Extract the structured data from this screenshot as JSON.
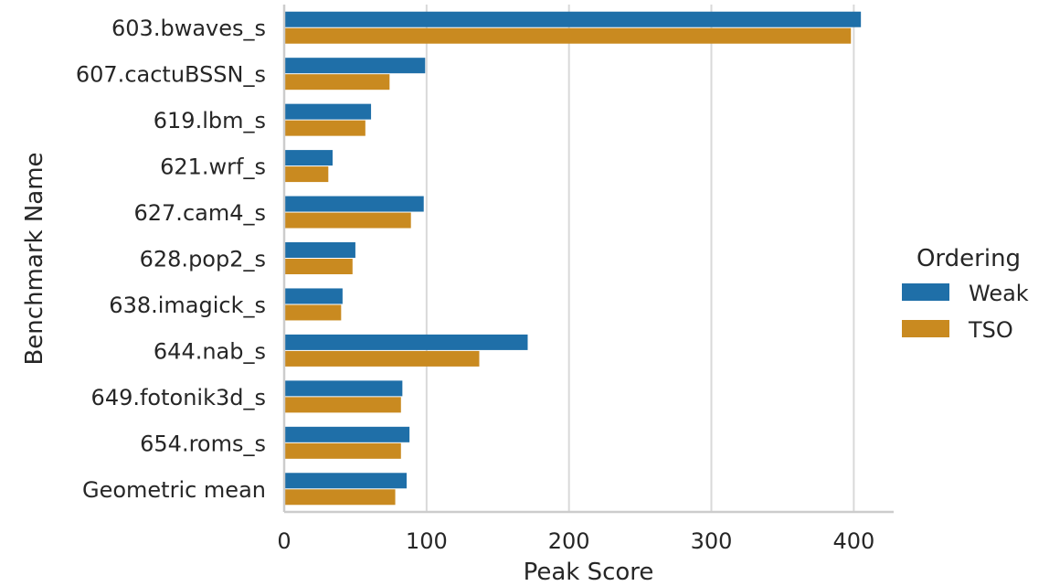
{
  "chart_data": {
    "type": "bar",
    "orientation": "horizontal",
    "title": "",
    "xlabel": "Peak Score",
    "ylabel": "Benchmark Name",
    "xlim": [
      0,
      428
    ],
    "xticks": [
      0,
      100,
      200,
      300,
      400
    ],
    "grid": "vertical",
    "categories": [
      "603.bwaves_s",
      "607.cactuBSSN_s",
      "619.lbm_s",
      "621.wrf_s",
      "627.cam4_s",
      "628.pop2_s",
      "638.imagick_s",
      "644.nab_s",
      "649.fotonik3d_s",
      "654.roms_s",
      "Geometric mean"
    ],
    "series": [
      {
        "name": "Weak",
        "color": "#1f6fa8",
        "values": [
          405,
          99,
          61,
          34,
          98,
          50,
          41,
          171,
          83,
          88,
          86
        ]
      },
      {
        "name": "TSO",
        "color": "#c98a20",
        "values": [
          398,
          74,
          57,
          31,
          89,
          48,
          40,
          137,
          82,
          82,
          78
        ]
      }
    ],
    "legend": {
      "title": "Ordering",
      "placement": "right"
    }
  }
}
